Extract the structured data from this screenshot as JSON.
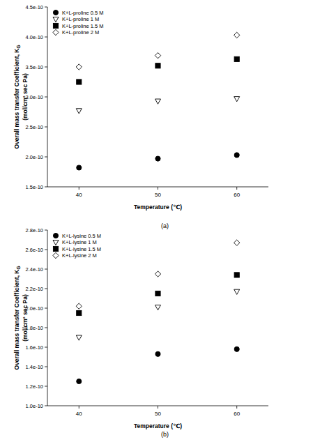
{
  "chart_data": [
    {
      "type": "scatter",
      "caption": "(a)",
      "xlabel": "Temperature (℃)",
      "ylabel": {
        "text": "Overall mass transfer Coefficient, K",
        "subscript": "G",
        "units": "(mol/cm² sec Pa)"
      },
      "x": [
        40,
        50,
        60
      ],
      "xlim": [
        36,
        64
      ],
      "xticks": [
        40,
        50,
        60
      ],
      "ylim": [
        1.5e-10,
        4.5e-10
      ],
      "yticks": [
        {
          "value": 1.5e-10,
          "label": "1.5e-10"
        },
        {
          "value": 2e-10,
          "label": "2.0e-10"
        },
        {
          "value": 2.5e-10,
          "label": "2.5e-10"
        },
        {
          "value": 3e-10,
          "label": "3.0e-10"
        },
        {
          "value": 3.5e-10,
          "label": "3.5e-10"
        },
        {
          "value": 4e-10,
          "label": "4.0e-10"
        },
        {
          "value": 4.5e-10,
          "label": "4.5e-10"
        }
      ],
      "legend": "upper left",
      "grid": false,
      "series": [
        {
          "name": "K+L-proline 0.5 M",
          "color": "#000000",
          "marker": "circle",
          "values": [
            1.82e-10,
            1.97e-10,
            2.03e-10
          ]
        },
        {
          "name": "K+L-proline 1 M",
          "color": "#000000",
          "marker": "triangle-down-open",
          "values": [
            2.77e-10,
            2.93e-10,
            2.97e-10
          ]
        },
        {
          "name": "K+L-proline 1.5 M",
          "color": "#000000",
          "marker": "square",
          "values": [
            3.25e-10,
            3.52e-10,
            3.63e-10
          ]
        },
        {
          "name": "K+L-proline 2 M",
          "color": "#000000",
          "marker": "diamond-open",
          "values": [
            3.5e-10,
            3.69e-10,
            4.03e-10
          ]
        }
      ]
    },
    {
      "type": "scatter",
      "caption": "(b)",
      "xlabel": "Temperature (℃)",
      "ylabel": {
        "text": "Overall mass transfer Coefficient, K",
        "subscript": "G",
        "units": "(mol/cm² sec Pa)"
      },
      "x": [
        40,
        50,
        60
      ],
      "xlim": [
        36,
        64
      ],
      "xticks": [
        40,
        50,
        60
      ],
      "ylim": [
        1e-10,
        2.8e-10
      ],
      "yticks": [
        {
          "value": 1e-10,
          "label": "1.0e-10"
        },
        {
          "value": 1.2e-10,
          "label": "1.2e-10"
        },
        {
          "value": 1.4e-10,
          "label": "1.4e-10"
        },
        {
          "value": 1.6e-10,
          "label": "1.6e-10"
        },
        {
          "value": 1.8e-10,
          "label": "1.8e-10"
        },
        {
          "value": 2e-10,
          "label": "2.0e-10"
        },
        {
          "value": 2.2e-10,
          "label": "2.2e-10"
        },
        {
          "value": 2.4e-10,
          "label": "2.4e-10"
        },
        {
          "value": 2.6e-10,
          "label": "2.6e-10"
        },
        {
          "value": 2.8e-10,
          "label": "2.8e-10"
        }
      ],
      "legend": "upper left",
      "grid": false,
      "series": [
        {
          "name": "K+L-lysine 0.5 M",
          "color": "#000000",
          "marker": "circle",
          "values": [
            1.25e-10,
            1.53e-10,
            1.58e-10
          ]
        },
        {
          "name": "K+L-lysine 1 M",
          "color": "#000000",
          "marker": "triangle-down-open",
          "values": [
            1.7e-10,
            2.01e-10,
            2.17e-10
          ]
        },
        {
          "name": "K+L-lysine 1.5 M",
          "color": "#000000",
          "marker": "square",
          "values": [
            1.95e-10,
            2.15e-10,
            2.34e-10
          ]
        },
        {
          "name": "K+L-lysine 2 M",
          "color": "#000000",
          "marker": "diamond-open",
          "values": [
            2.02e-10,
            2.35e-10,
            2.67e-10
          ]
        }
      ]
    }
  ]
}
